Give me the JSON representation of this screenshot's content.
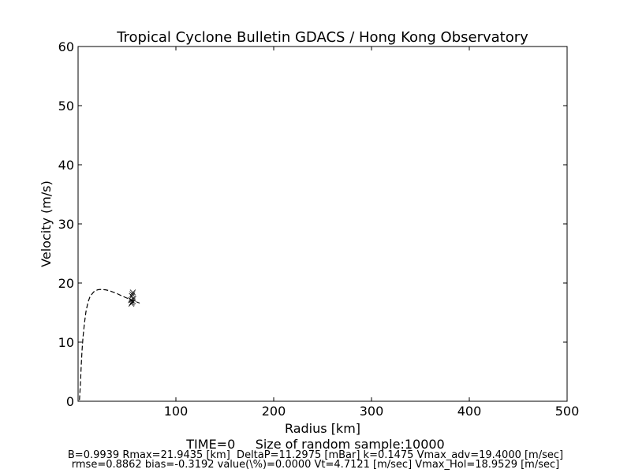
{
  "chart_data": {
    "type": "line",
    "title": "Tropical Cyclone Bulletin GDACS / Hong Kong Observatory",
    "xlabel": "Radius [km]",
    "ylabel": "Velocity (m/s)",
    "xlim": [
      0,
      500
    ],
    "ylim": [
      0,
      60
    ],
    "xticks": [
      100,
      200,
      300,
      400,
      500
    ],
    "yticks": [
      0,
      10,
      20,
      30,
      40,
      50,
      60
    ],
    "grid": false,
    "series": [
      {
        "style": "dashed-line",
        "color": "#000000",
        "points": [
          [
            1.4,
            0.2
          ],
          [
            2.4,
            3
          ],
          [
            3.2,
            6
          ],
          [
            4,
            8.5
          ],
          [
            5,
            10.8
          ],
          [
            6.5,
            13.2
          ],
          [
            8,
            15.1
          ],
          [
            10,
            16.7
          ],
          [
            12,
            17.6
          ],
          [
            14,
            18.1
          ],
          [
            16,
            18.5
          ],
          [
            18,
            18.7
          ],
          [
            20,
            18.85
          ],
          [
            22,
            18.9
          ],
          [
            25,
            18.9
          ],
          [
            28,
            18.85
          ],
          [
            32,
            18.7
          ],
          [
            36,
            18.45
          ],
          [
            40,
            18.2
          ],
          [
            45,
            17.8
          ],
          [
            50,
            17.45
          ],
          [
            55,
            17.1
          ],
          [
            60,
            16.8
          ],
          [
            63,
            16.6
          ]
        ]
      },
      {
        "style": "x-markers",
        "color": "#000000",
        "points": [
          [
            54,
            17.1
          ],
          [
            55,
            16.7
          ],
          [
            56,
            18.4
          ],
          [
            55.5,
            18.1
          ],
          [
            55,
            17.8
          ],
          [
            56.5,
            17.3
          ],
          [
            54.5,
            16.5
          ],
          [
            56,
            16.9
          ]
        ]
      }
    ]
  },
  "footer": {
    "time_label": "TIME=0     Size of random sample:10000",
    "params_line": "B=0.9939 Rmax=21.9435 [km]  DeltaP=11.2975 [mBar] k=0.1475 Vmax_adv=19.4000 [m/sec]",
    "stats_line": "rmse=0.8862 bias=-0.3192 value(\\%)=0.0000 Vt=4.7121 [m/sec] Vmax_Hol=18.9529 [m/sec]"
  }
}
